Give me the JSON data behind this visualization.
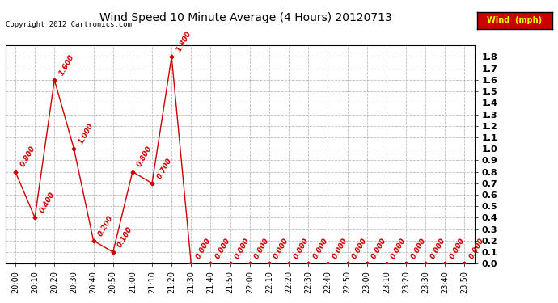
{
  "title": "Wind Speed 10 Minute Average (4 Hours) 20120713",
  "copyright_text": "Copyright 2012 Cartronics.com",
  "legend_label": "Wind  (mph)",
  "legend_bg": "#dd0000",
  "line_color": "#cc0000",
  "marker_color": "#cc0000",
  "bg_color": "#ffffff",
  "x_labels": [
    "20:00",
    "20:10",
    "20:20",
    "20:30",
    "20:40",
    "20:50",
    "21:00",
    "21:10",
    "21:20",
    "21:30",
    "21:40",
    "21:50",
    "22:00",
    "22:10",
    "22:20",
    "22:30",
    "22:40",
    "22:50",
    "23:00",
    "23:10",
    "23:20",
    "23:30",
    "23:40",
    "23:50"
  ],
  "y_values": [
    0.8,
    0.4,
    1.6,
    1.0,
    0.2,
    0.1,
    0.8,
    0.7,
    1.8,
    0.0,
    0.0,
    0.0,
    0.0,
    0.0,
    0.0,
    0.0,
    0.0,
    0.0,
    0.0,
    0.0,
    0.0,
    0.0,
    0.0,
    0.0
  ],
  "ylim": [
    0.0,
    1.9
  ],
  "yticks": [
    0.0,
    0.1,
    0.2,
    0.3,
    0.4,
    0.5,
    0.6,
    0.7,
    0.8,
    0.9,
    1.0,
    1.1,
    1.2,
    1.3,
    1.4,
    1.5,
    1.6,
    1.7,
    1.8
  ],
  "ytick_labels": [
    "0.0",
    "0.1",
    "0.2",
    "0.3",
    "0.4",
    "0.5",
    "0.6",
    "0.7",
    "0.8",
    "0.9",
    "1.0",
    "1.1",
    "1.2",
    "1.3",
    "1.4",
    "1.5",
    "1.6",
    "1.7",
    "1.8"
  ],
  "grid_color": "#bbbbbb",
  "title_fontsize": 10,
  "label_fontsize": 7,
  "annotation_fontsize": 6.5,
  "fig_bg": "#ffffff"
}
